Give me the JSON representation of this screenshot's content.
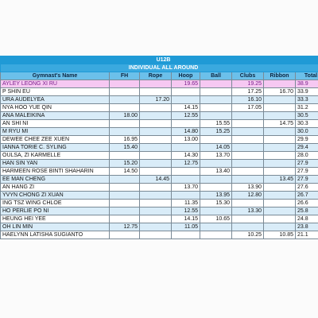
{
  "table": {
    "title": "U12B",
    "subtitle": "INDIVIDUAL ALL AROUND",
    "headers": [
      "Gymnast's Name",
      "FH",
      "Rope",
      "Hoop",
      "Ball",
      "Clubs",
      "Ribbon",
      "Total"
    ],
    "rows": [
      [
        "AYLEY LEONG XI RU",
        null,
        null,
        "19.65",
        null,
        "19.25",
        null,
        "38.9"
      ],
      [
        "P SHIN EU",
        null,
        null,
        null,
        null,
        "17.25",
        "16.70",
        "33.9"
      ],
      [
        "URA AUDELYEA",
        null,
        "17.20",
        null,
        null,
        "16.10",
        null,
        "33.3"
      ],
      [
        "NYA HOO YUE QIN",
        null,
        null,
        "14.15",
        null,
        "17.05",
        null,
        "31.2"
      ],
      [
        "ANA MALEIKINA",
        "18.00",
        null,
        "12.55",
        null,
        null,
        null,
        "30.5"
      ],
      [
        "AN SHI NI",
        null,
        null,
        null,
        "15.55",
        null,
        "14.75",
        "30.3"
      ],
      [
        "M RYU MI",
        null,
        null,
        "14.80",
        "15.25",
        null,
        null,
        "30.0"
      ],
      [
        "DEWEE CHEE ZEE XUEN",
        "16.95",
        null,
        "13.00",
        null,
        null,
        null,
        "29.9"
      ],
      [
        "IANNA TORIE C. SYLING",
        "15.40",
        null,
        null,
        "14.05",
        null,
        null,
        "29.4"
      ],
      [
        "OULSA, ZI KARMELLE",
        null,
        null,
        "14.30",
        "13.70",
        null,
        null,
        "28.0"
      ],
      [
        "HAN SIN YAN",
        "15.20",
        null,
        "12.75",
        null,
        null,
        null,
        "27.9"
      ],
      [
        "HARMEEN ROSE BINTI SHAHARIN",
        "14.50",
        null,
        null,
        "13.40",
        null,
        null,
        "27.9"
      ],
      [
        "EE MAN CHENG",
        null,
        "14.45",
        null,
        null,
        null,
        "13.45",
        "27.9"
      ],
      [
        "AN HANG ZI",
        null,
        null,
        "13.70",
        null,
        "13.90",
        null,
        "27.6"
      ],
      [
        "YVYN CHONG ZI XUAN",
        null,
        null,
        null,
        "13.95",
        "12.80",
        null,
        "26.7"
      ],
      [
        "ING TSZ WING CHLOE",
        null,
        null,
        "11.35",
        "15.30",
        null,
        null,
        "26.6"
      ],
      [
        "HO PERLIE PO NI",
        null,
        null,
        "12.55",
        null,
        "13.30",
        null,
        "25.8"
      ],
      [
        "HEUNG HEI YEE",
        null,
        null,
        "14.15",
        "10.65",
        null,
        null,
        "24.8"
      ],
      [
        "OH LIN MIN",
        "12.75",
        null,
        "11.05",
        null,
        null,
        null,
        "23.8"
      ],
      [
        "HAELYNN LATISHA SUGIANTO",
        null,
        null,
        null,
        null,
        "10.25",
        "10.85",
        "21.1"
      ]
    ]
  }
}
